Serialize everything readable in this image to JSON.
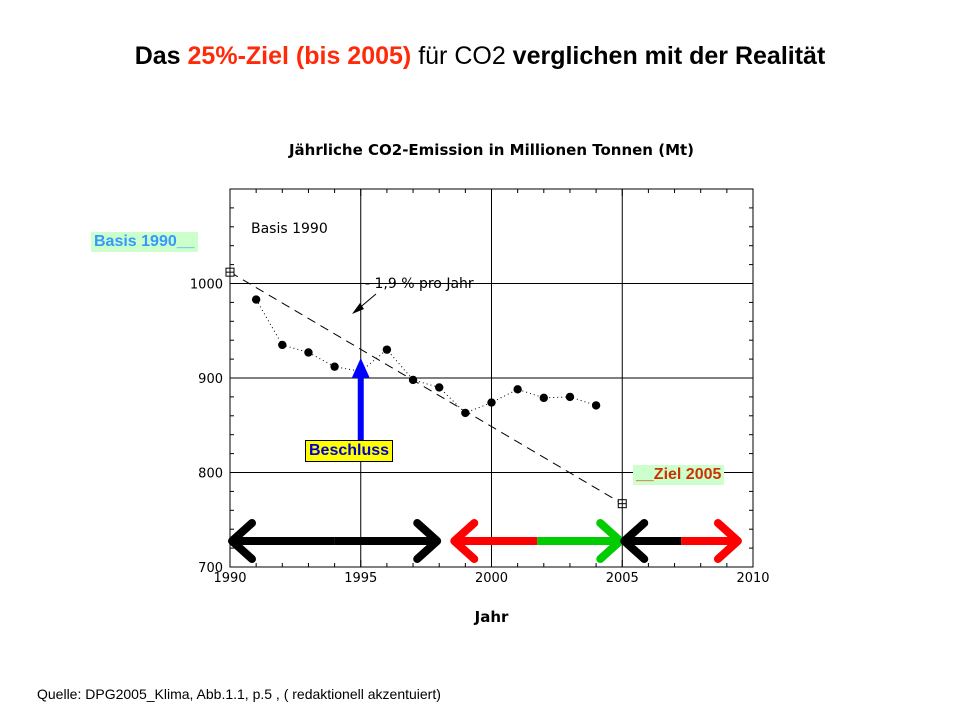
{
  "slide": {
    "title_part1": "Das ",
    "title_part2": "25%-Ziel (bis 2005)",
    "title_part3": " für CO2 ",
    "title_part4": "verglichen mit der Realität",
    "source": "Quelle: DPG2005_Klima, Abb.1.1, p.5 ,        ( redaktionell akzentuiert)"
  },
  "labels": {
    "basis_tag": "Basis 1990__",
    "beschluss": "Beschluss",
    "ziel_tag": "__Ziel 2005"
  },
  "colors": {
    "title_accent": "#ff2a0a",
    "basis_bg": "#ccffcc",
    "basis_text": "#3399ff",
    "beschluss_bg": "#ffff00",
    "beschluss_text": "#0000cc",
    "ziel_bg": "#ccffcc",
    "ziel_text": "#cc3300",
    "arrow_blue": "#0000ff",
    "arrow_black": "#000000",
    "arrow_red": "#ff0000",
    "arrow_green": "#00cc00"
  },
  "chart_data": {
    "type": "scatter",
    "title": "Jährliche CO2-Emission in Millionen Tonnen (Mt)",
    "xlabel": "Jahr",
    "ylabel": "",
    "xlim": [
      1990,
      2010
    ],
    "ylim": [
      700,
      1100
    ],
    "x_ticks": [
      1990,
      1995,
      2000,
      2005,
      2010
    ],
    "y_ticks": [
      700,
      800,
      900,
      1000
    ],
    "grid": true,
    "series": [
      {
        "name": "",
        "style": "dotted-line-with-dots",
        "x": [
          1991,
          1992,
          1993,
          1994,
          1995,
          1996,
          1997,
          1998,
          1999,
          2000,
          2001,
          2002,
          2003,
          2004
        ],
        "y": [
          983,
          935,
          927,
          912,
          907,
          930,
          898,
          890,
          863,
          874,
          888,
          879,
          880,
          871
        ]
      },
      {
        "name": "",
        "style": "dashed-line",
        "x": [
          1990,
          2005
        ],
        "y": [
          1012,
          767
        ]
      }
    ],
    "markers": [
      {
        "x": 1990,
        "y": 1012
      },
      {
        "x": 2005,
        "y": 767
      }
    ],
    "annotations": [
      {
        "text": "Basis 1990"
      },
      {
        "text": "- 1,9 % pro Jahr"
      }
    ],
    "timeline_arrows": [
      {
        "from": 1990,
        "to": 1998,
        "color": "#000000",
        "heads": "both"
      },
      {
        "from": 1998.5,
        "to": 2005,
        "colors": [
          "#ff0000",
          "#00cc00"
        ],
        "heads": "both"
      },
      {
        "from": 2005,
        "to": 2009.5,
        "colors": [
          "#000000",
          "#ff0000"
        ],
        "heads": "both"
      }
    ]
  }
}
